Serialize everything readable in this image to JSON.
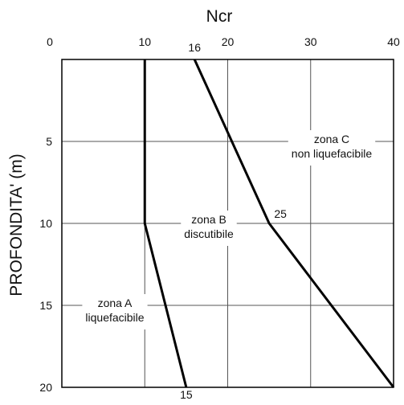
{
  "chart_data": {
    "type": "line",
    "title": "",
    "xlabel": "Ncr",
    "ylabel": "PROFONDITA' (m)",
    "xlim": [
      0,
      40
    ],
    "ylim": [
      0,
      20
    ],
    "y_inverted": true,
    "x_axis_position": "top",
    "xticks": [
      0,
      10,
      20,
      30,
      40
    ],
    "yticks": [
      5,
      10,
      15,
      20
    ],
    "xtick_labels": [
      "0",
      "10",
      "20",
      "30",
      "40"
    ],
    "ytick_labels": [
      "5",
      "10",
      "15",
      "20"
    ],
    "grid": true,
    "series": [
      {
        "x": [
          10,
          10,
          15
        ],
        "y": [
          0,
          10,
          20
        ]
      },
      {
        "x": [
          16,
          25,
          40
        ],
        "y": [
          0,
          10,
          20
        ]
      }
    ],
    "annotations": [
      {
        "text": "16",
        "x": 16,
        "y": 0
      },
      {
        "text": "25",
        "x": 25,
        "y": 10
      },
      {
        "text": "15",
        "x": 15,
        "y": 20
      }
    ],
    "zones": [
      {
        "lines": [
          "zona A",
          "liquefacibile"
        ]
      },
      {
        "lines": [
          "zona B",
          "discutibile"
        ]
      },
      {
        "lines": [
          "zona C",
          "non liquefacibile"
        ]
      }
    ],
    "colors": {
      "line": "#000000",
      "grid": "#555555",
      "frame": "#000000"
    }
  }
}
